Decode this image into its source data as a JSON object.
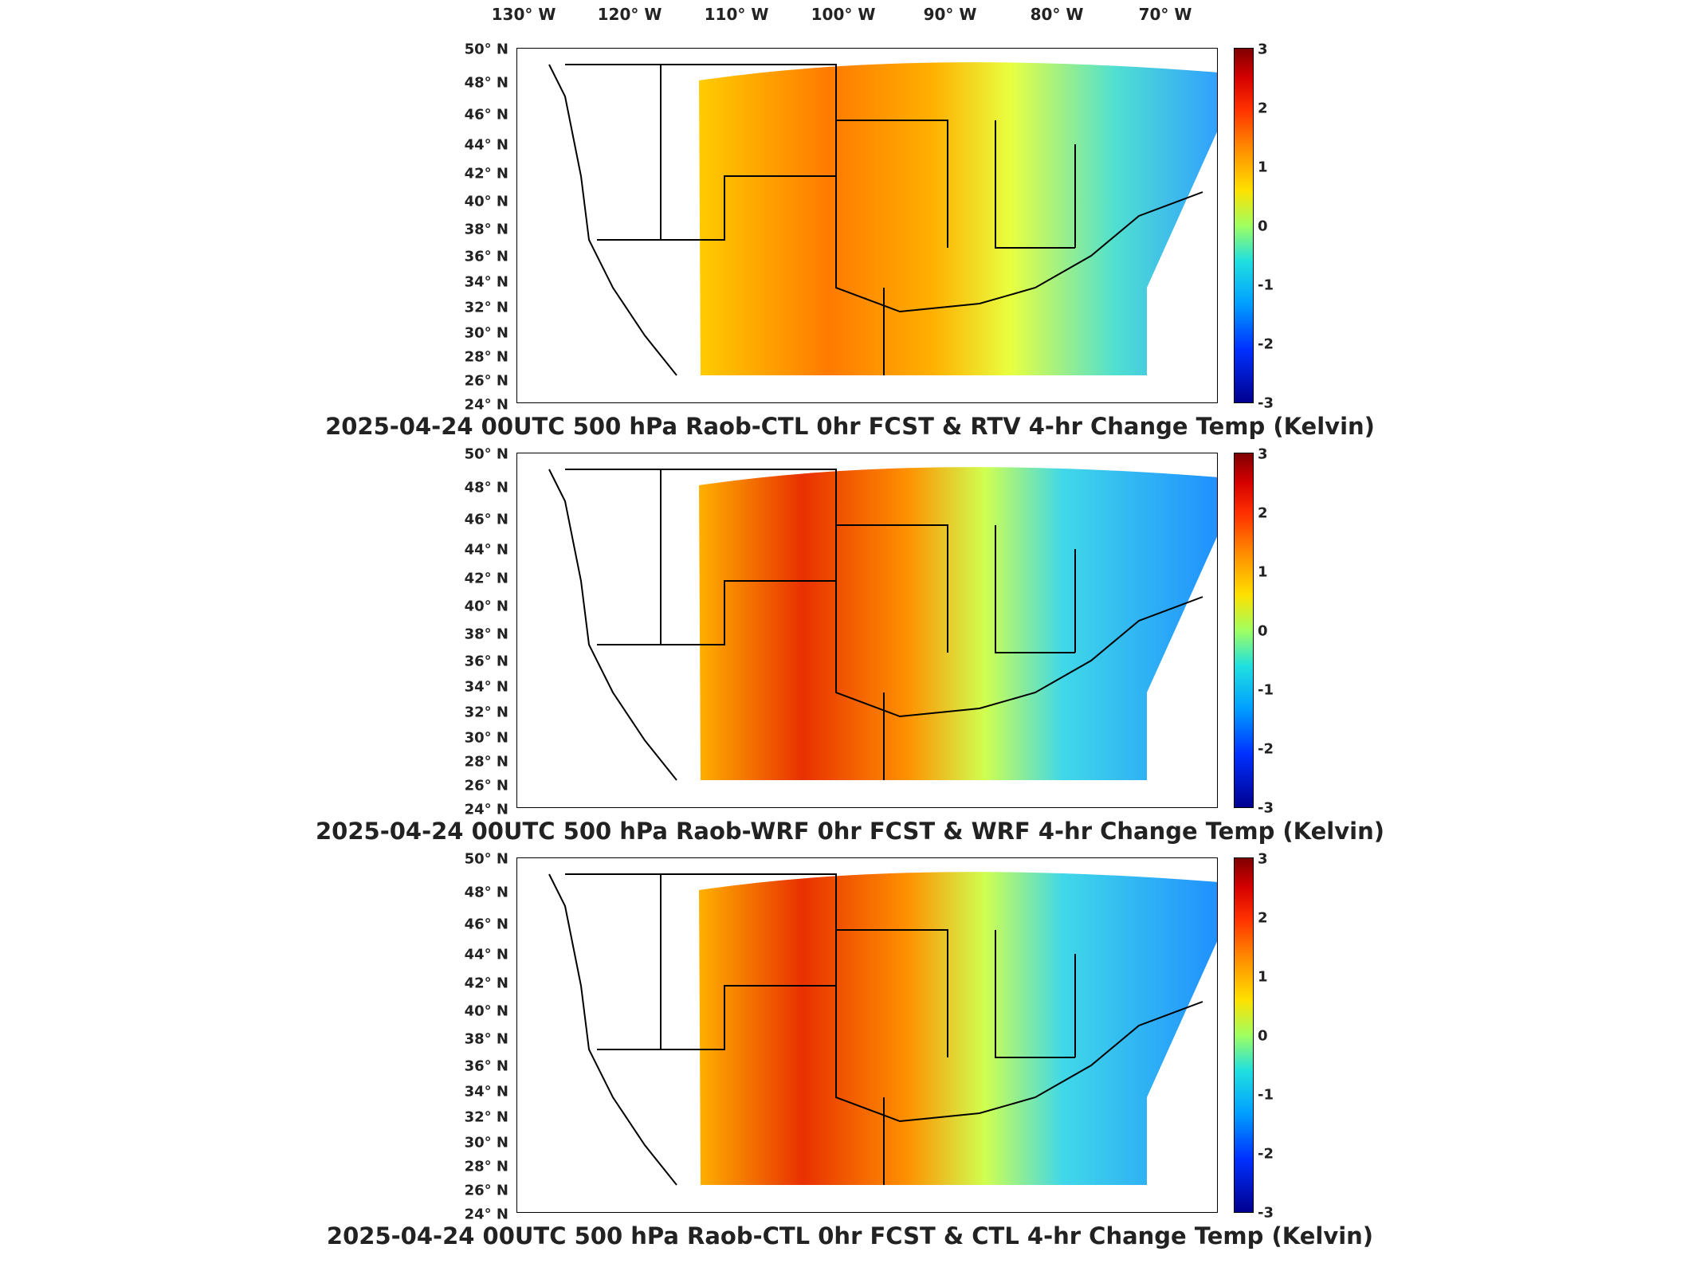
{
  "longitude_labels": [
    "130° W",
    "120° W",
    "110° W",
    "100° W",
    "90° W",
    "80° W",
    "70° W"
  ],
  "latitude_labels": [
    "50° N",
    "48° N",
    "46° N",
    "44° N",
    "42° N",
    "40° N",
    "38° N",
    "36° N",
    "34° N",
    "32° N",
    "30° N",
    "28° N",
    "26° N",
    "24° N"
  ],
  "colorbar": {
    "ticks": [
      "3",
      "2",
      "1",
      "0",
      "-1",
      "-2",
      "-3"
    ],
    "colors": [
      "#7f0000",
      "#d40000",
      "#ff3000",
      "#ff8a00",
      "#ffe000",
      "#a0ff60",
      "#20e0e0",
      "#00a0ff",
      "#0030ff",
      "#00008f"
    ]
  },
  "panels": [
    {
      "title": "2025-04-24 00UTC 500 hPa Raob-CTL 0hr FCST & RTV 4-hr Change Temp (Kelvin)"
    },
    {
      "title": "2025-04-24 00UTC 500 hPa Raob-WRF 0hr FCST & WRF 4-hr Change Temp (Kelvin)"
    },
    {
      "title": "2025-04-24 00UTC 500 hPa Raob-CTL 0hr FCST & CTL 4-hr Change Temp (Kelvin)"
    }
  ]
}
